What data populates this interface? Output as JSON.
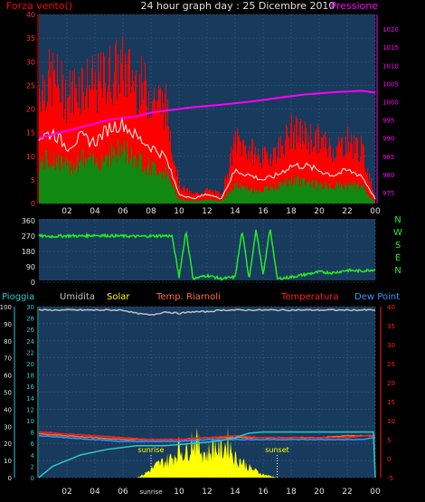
{
  "header": {
    "title": "24 hour graph day : 25 Dicembre 2010",
    "left_label": "Forza vento()",
    "right_label": "Pressione"
  },
  "colors": {
    "plot_bg": "#183a5c",
    "grid": "#3a5f8a",
    "wind_gust": "#ff0000",
    "wind_avg": "#118811",
    "wind_line": "#ffffff",
    "pressure": "#ff00ff",
    "direction": "#22ee22",
    "rain_axis": "#2ec8c8",
    "humidity": "#c0c0c0",
    "solar": "#ffff00",
    "temp_riarnoli": "#ff7030",
    "temperature": "#ff2020",
    "dew_point": "#3399ff"
  },
  "chart_data": [
    {
      "type": "area",
      "name": "wind",
      "title": "",
      "x_ticks": [
        "02",
        "04",
        "06",
        "08",
        "10",
        "12",
        "14",
        "16",
        "18",
        "20",
        "22",
        "00"
      ],
      "y_left_ticks": [
        0,
        5,
        10,
        15,
        20,
        25,
        30,
        35,
        40
      ],
      "y_right_ticks": [
        975,
        980,
        985,
        990,
        995,
        1000,
        1005,
        1010,
        1015,
        1020
      ],
      "ylim": [
        0,
        40
      ],
      "ylim_right": [
        972,
        1024
      ],
      "series": [
        {
          "name": "Forza vento()",
          "x": [
            0,
            1,
            2,
            3,
            4,
            5,
            6,
            7,
            8,
            9,
            10,
            11,
            12,
            13,
            14,
            15,
            16,
            17,
            18,
            19,
            20,
            21,
            22,
            23,
            24
          ],
          "values": [
            26,
            28,
            24,
            27,
            26,
            29,
            30,
            27,
            24,
            22,
            4,
            2,
            3,
            2,
            14,
            12,
            10,
            12,
            16,
            15,
            14,
            12,
            14,
            12,
            1
          ]
        },
        {
          "values": [
            14,
            15,
            12,
            14,
            13,
            16,
            17,
            14,
            12,
            10,
            2,
            1,
            2,
            1,
            7,
            6,
            5,
            6,
            8,
            8,
            7,
            6,
            7,
            6,
            1
          ]
        },
        {
          "values": [
            9,
            10,
            8,
            10,
            9,
            11,
            12,
            10,
            8,
            7,
            1,
            0.5,
            1,
            0.5,
            4,
            3,
            3,
            4,
            5,
            5,
            4,
            4,
            4,
            4,
            0
          ]
        },
        {
          "name": "Pressione",
          "values": [
            990,
            991,
            992,
            993,
            994,
            995,
            995.5,
            996,
            997,
            997.5,
            998,
            998.5,
            998.8,
            999.2,
            999.6,
            1000,
            1000.5,
            1001,
            1001.5,
            1002,
            1002.3,
            1002.6,
            1002.8,
            1003,
            1002.5
          ]
        }
      ]
    },
    {
      "type": "line",
      "name": "wind-direction",
      "y_left_ticks": [
        0,
        90,
        180,
        270,
        360
      ],
      "y_right_labels": [
        "N",
        "W",
        "S",
        "E",
        "N"
      ],
      "ylim": [
        0,
        360
      ],
      "series": [
        {
          "x": [
            0,
            1,
            2,
            3,
            4,
            5,
            6,
            7,
            8,
            9,
            9.5,
            10,
            10.5,
            11,
            12,
            13,
            14,
            14.5,
            15,
            15.5,
            16,
            16.5,
            17,
            18,
            19,
            20,
            21,
            22,
            23,
            24
          ],
          "values": [
            270,
            268,
            272,
            270,
            275,
            272,
            270,
            268,
            270,
            272,
            270,
            30,
            300,
            20,
            40,
            20,
            30,
            300,
            20,
            310,
            40,
            320,
            20,
            30,
            45,
            60,
            55,
            70,
            65,
            75
          ]
        }
      ]
    },
    {
      "type": "line",
      "name": "weather",
      "legend": [
        "Pioggia",
        "Umidita",
        "Solar",
        "Temp. Riarnoli",
        "Temperatura",
        "Dew Point"
      ],
      "y_left_ticks": [
        0,
        10,
        20,
        30,
        40,
        50,
        60,
        70,
        80,
        90,
        100
      ],
      "y_rain_ticks": [
        0,
        2,
        4,
        6,
        8,
        10,
        12,
        14,
        16,
        18,
        20,
        22,
        24,
        26,
        28,
        30
      ],
      "y_right_ticks": [
        -5,
        0,
        5,
        10,
        15,
        20,
        25,
        30,
        35,
        40
      ],
      "ylim_left": [
        0,
        100
      ],
      "ylim_right": [
        -5,
        40
      ],
      "annotations": [
        "sunrise",
        "sunset"
      ],
      "x_ticks_bottom": [
        "02",
        "04",
        "06",
        "sunrise",
        "10",
        "12",
        "14",
        "16",
        "18",
        "20",
        "22",
        "00"
      ],
      "series": [
        {
          "name": "Umidita",
          "x": [
            0,
            2,
            4,
            6,
            7,
            8,
            9,
            10,
            11,
            12,
            13,
            14,
            16,
            18,
            20,
            22,
            24
          ],
          "values": [
            98,
            98,
            98,
            98,
            96,
            95,
            97,
            96,
            97,
            97,
            98,
            98,
            98,
            98,
            98,
            98,
            98
          ]
        },
        {
          "name": "Temperatura",
          "x": [
            0,
            2,
            4,
            6,
            8,
            10,
            12,
            14,
            16,
            18,
            20,
            22,
            23,
            24
          ],
          "values": [
            7,
            6.5,
            6,
            5.5,
            5,
            5,
            5.5,
            6,
            5.5,
            5.5,
            5.5,
            5.5,
            6,
            6
          ]
        },
        {
          "name": "Temp. Riarnoli",
          "x": [
            0,
            2,
            4,
            6,
            8,
            10,
            12,
            14,
            16,
            18,
            20,
            22,
            24
          ],
          "values": [
            6.5,
            6,
            5.5,
            5,
            5,
            5,
            5.5,
            5.5,
            5.5,
            5.5,
            5.5,
            6,
            6
          ]
        },
        {
          "name": "Dew Point",
          "x": [
            0,
            2,
            4,
            6,
            8,
            10,
            12,
            14,
            16,
            18,
            20,
            22,
            23,
            24
          ],
          "values": [
            6,
            5.5,
            5,
            4.5,
            4.5,
            4.5,
            5,
            5,
            5,
            5,
            5,
            5,
            5,
            5.5
          ]
        },
        {
          "name": "Pioggia",
          "x": [
            0,
            1,
            2,
            3,
            4,
            5,
            6,
            7,
            8,
            9,
            10,
            11,
            12,
            13,
            14,
            15,
            16,
            17,
            18,
            19,
            20,
            21,
            22,
            23,
            23.9,
            24
          ],
          "values": [
            0,
            2,
            3,
            4,
            4.5,
            5,
            5.3,
            5.6,
            5.6,
            5.6,
            5.8,
            6,
            6.2,
            6.5,
            7,
            7.8,
            8,
            8,
            8,
            8,
            8,
            8,
            8,
            8,
            8,
            0
          ]
        },
        {
          "name": "Solar",
          "x": [
            0,
            7,
            7.5,
            8,
            8.5,
            9,
            9.5,
            10,
            10.5,
            11,
            11.5,
            12,
            12.5,
            13,
            13.5,
            14,
            14.5,
            15,
            15.5,
            16,
            16.5,
            17,
            24
          ],
          "values": [
            0,
            0,
            2,
            5,
            8,
            10,
            12,
            18,
            15,
            25,
            18,
            14,
            20,
            16,
            22,
            12,
            10,
            6,
            4,
            2,
            1,
            0,
            0
          ]
        }
      ]
    }
  ]
}
